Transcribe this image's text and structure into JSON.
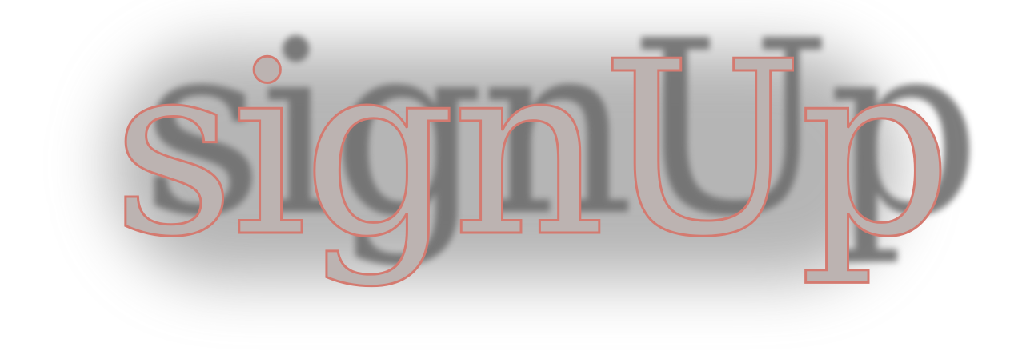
{
  "logo": {
    "text": "signUp"
  },
  "colors": {
    "fill": "#bcb3b1",
    "outline": "#d47a70",
    "shadow": "#6f6f6f",
    "background": "#ffffff"
  }
}
